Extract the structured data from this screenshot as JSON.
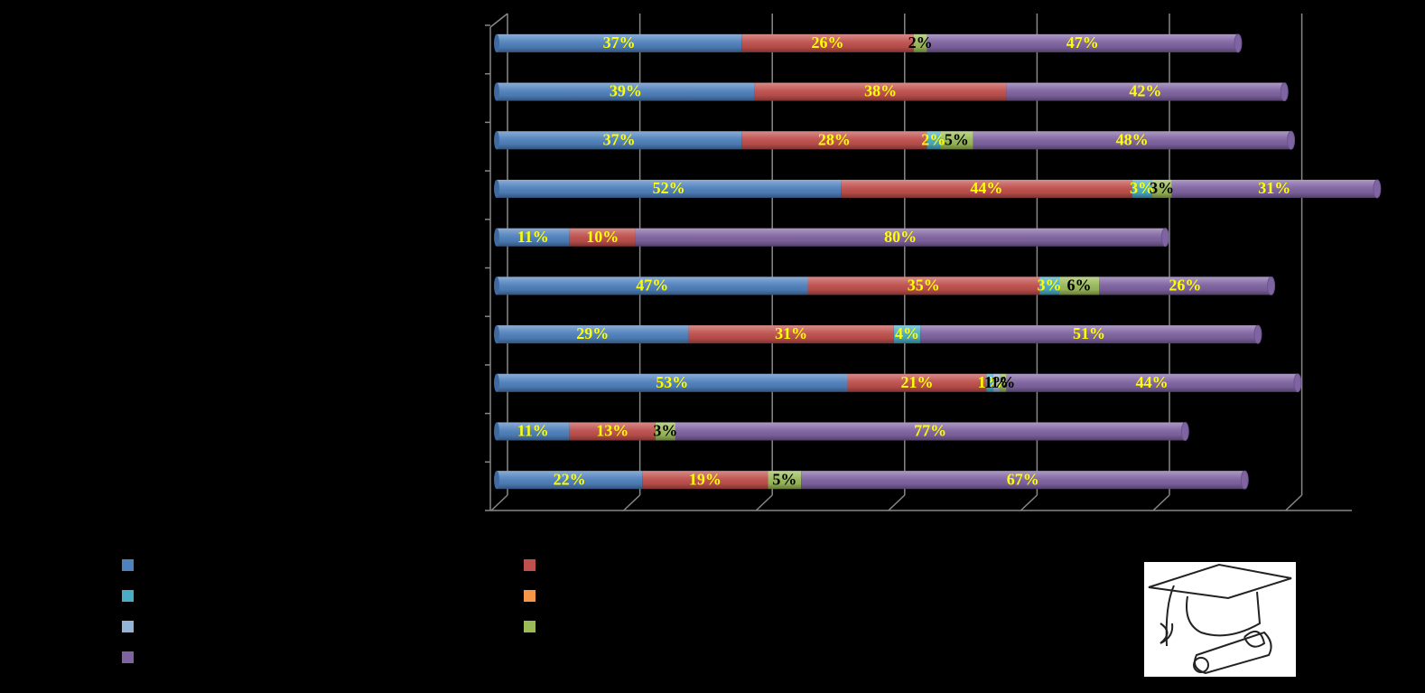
{
  "chart_data": {
    "type": "bar",
    "orientation": "horizontal",
    "stacked": true,
    "xlim": [
      0,
      120
    ],
    "xticks": [
      0,
      20,
      40,
      60,
      80,
      100,
      120
    ],
    "grid": true,
    "series": [
      {
        "color": "#4f81bd",
        "label_color": "#ffff00",
        "values": [
          37,
          39,
          37,
          52,
          11,
          47,
          29,
          53,
          11,
          22
        ],
        "value_labels": [
          "37%",
          "39%",
          "37%",
          "52%",
          "11%",
          "47%",
          "29%",
          "53%",
          "11%",
          "22%"
        ]
      },
      {
        "color": "#c0504d",
        "label_color": "#ffff00",
        "values": [
          26,
          38,
          28,
          44,
          10,
          35,
          31,
          21,
          13,
          19
        ],
        "value_labels": [
          "26%",
          "38%",
          "28%",
          "44%",
          "10%",
          "35%",
          "31%",
          "21%",
          "13%",
          "19%"
        ]
      },
      {
        "color": "#4bacc6",
        "label_color": "#ffff00",
        "values": [
          null,
          null,
          2,
          3,
          null,
          3,
          4,
          1,
          null,
          null
        ],
        "value_labels": [
          null,
          null,
          "2%",
          "3%",
          null,
          "3%",
          "4%",
          "1%",
          null,
          null
        ]
      },
      {
        "color": "#f79646",
        "label_color": "#ffff00",
        "values": [
          null,
          null,
          null,
          null,
          null,
          null,
          null,
          null,
          null,
          null
        ],
        "value_labels": [
          null,
          null,
          null,
          null,
          null,
          null,
          null,
          null,
          null,
          null
        ]
      },
      {
        "color": "#95b3d7",
        "label_color": "#000000",
        "values": [
          null,
          null,
          null,
          null,
          null,
          null,
          null,
          1,
          null,
          null
        ],
        "value_labels": [
          null,
          null,
          null,
          null,
          null,
          null,
          null,
          "1%",
          null,
          null
        ]
      },
      {
        "color": "#9bbb59",
        "label_color": "#000000",
        "values": [
          2,
          null,
          5,
          3,
          null,
          6,
          null,
          1,
          3,
          5
        ],
        "value_labels": [
          "2%",
          null,
          "5%",
          "3%",
          null,
          "6%",
          null,
          "1%",
          "3%",
          "5%"
        ]
      },
      {
        "color": "#8064a2",
        "label_color": "#ffff00",
        "values": [
          47,
          42,
          48,
          31,
          80,
          26,
          51,
          44,
          77,
          67
        ],
        "value_labels": [
          "47%",
          "42%",
          "48%",
          "31%",
          "80%",
          "26%",
          "51%",
          "44%",
          "77%",
          "67%"
        ]
      }
    ]
  }
}
